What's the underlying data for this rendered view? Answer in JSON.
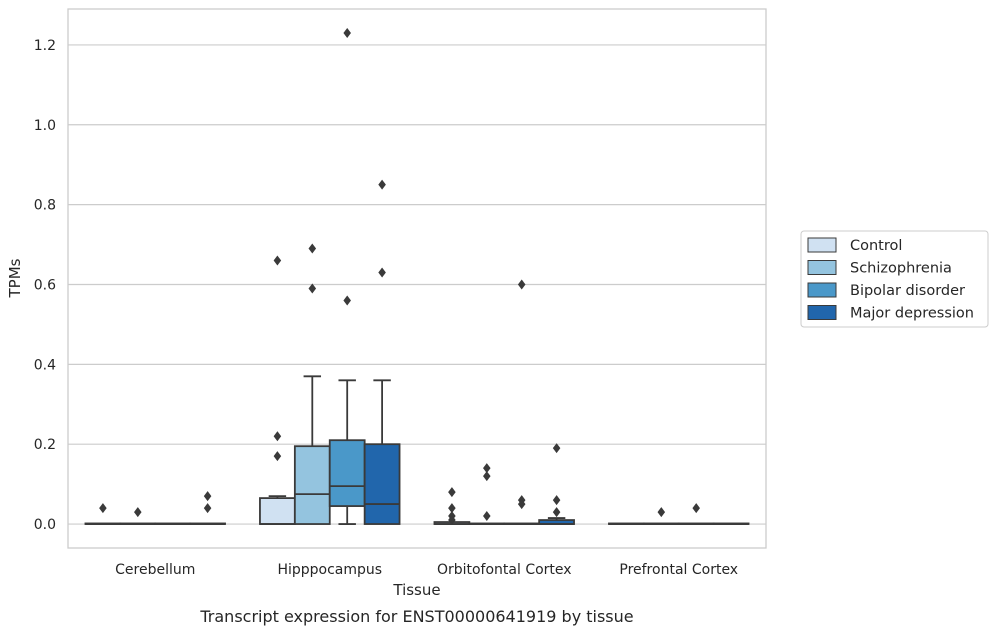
{
  "chart_data": {
    "type": "box",
    "title": "",
    "caption": "Transcript expression for ENST00000641919 by tissue",
    "xlabel": "Tissue",
    "ylabel": "TPMs",
    "ylim": [
      -0.06,
      1.29
    ],
    "yticks": [
      0.0,
      0.2,
      0.4,
      0.6,
      0.8,
      1.0,
      1.2
    ],
    "ytick_labels": [
      "0.0",
      "0.2",
      "0.4",
      "0.6",
      "0.8",
      "1.0",
      "1.2"
    ],
    "categories": [
      "Cerebellum",
      "Hipppocampus",
      "Orbitofontal Cortex",
      "Prefrontal Cortex"
    ],
    "grid": true,
    "legend": {
      "placement": "right"
    },
    "series": [
      {
        "name": "Control",
        "color": "#d0e1f2",
        "boxes": [
          {
            "q1": 0.0,
            "median": 0.0,
            "q3": 0.0,
            "whislo": 0.0,
            "whishi": 0.0,
            "fliers": [
              0.04
            ]
          },
          {
            "q1": 0.0,
            "median": 0.0,
            "q3": 0.065,
            "whislo": 0.0,
            "whishi": 0.07,
            "fliers": [
              0.22,
              0.17,
              0.66
            ]
          },
          {
            "q1": 0.0,
            "median": 0.0,
            "q3": 0.005,
            "whislo": 0.0,
            "whishi": 0.005,
            "fliers": [
              0.08,
              0.04,
              0.02,
              0.01
            ]
          },
          {
            "q1": 0.0,
            "median": 0.0,
            "q3": 0.0,
            "whislo": 0.0,
            "whishi": 0.0,
            "fliers": []
          }
        ]
      },
      {
        "name": "Schizophrenia",
        "color": "#94c4df",
        "boxes": [
          {
            "q1": 0.0,
            "median": 0.0,
            "q3": 0.0,
            "whislo": 0.0,
            "whishi": 0.0,
            "fliers": [
              0.03
            ]
          },
          {
            "q1": 0.0,
            "median": 0.075,
            "q3": 0.195,
            "whislo": 0.0,
            "whishi": 0.37,
            "fliers": [
              0.69,
              0.59
            ]
          },
          {
            "q1": 0.0,
            "median": 0.0,
            "q3": 0.0,
            "whislo": 0.0,
            "whishi": 0.0,
            "fliers": [
              0.14,
              0.12,
              0.02
            ]
          },
          {
            "q1": 0.0,
            "median": 0.0,
            "q3": 0.0,
            "whislo": 0.0,
            "whishi": 0.0,
            "fliers": [
              0.03
            ]
          }
        ]
      },
      {
        "name": "Bipolar disorder",
        "color": "#4a98c9",
        "boxes": [
          {
            "q1": 0.0,
            "median": 0.0,
            "q3": 0.0,
            "whislo": 0.0,
            "whishi": 0.0,
            "fliers": []
          },
          {
            "q1": 0.045,
            "median": 0.095,
            "q3": 0.21,
            "whislo": 0.0,
            "whishi": 0.36,
            "fliers": [
              1.23,
              0.56
            ]
          },
          {
            "q1": 0.0,
            "median": 0.0,
            "q3": 0.0,
            "whislo": 0.0,
            "whishi": 0.0,
            "fliers": [
              0.6,
              0.06,
              0.05
            ]
          },
          {
            "q1": 0.0,
            "median": 0.0,
            "q3": 0.0,
            "whislo": 0.0,
            "whishi": 0.0,
            "fliers": [
              0.04
            ]
          }
        ]
      },
      {
        "name": "Major depression",
        "color": "#2166ac",
        "boxes": [
          {
            "q1": 0.0,
            "median": 0.0,
            "q3": 0.0,
            "whislo": 0.0,
            "whishi": 0.0,
            "fliers": [
              0.07,
              0.04
            ]
          },
          {
            "q1": 0.0,
            "median": 0.05,
            "q3": 0.2,
            "whislo": 0.0,
            "whishi": 0.36,
            "fliers": [
              0.85,
              0.63
            ]
          },
          {
            "q1": 0.0,
            "median": 0.0,
            "q3": 0.01,
            "whislo": 0.0,
            "whishi": 0.015,
            "fliers": [
              0.19,
              0.06,
              0.03
            ]
          },
          {
            "q1": 0.0,
            "median": 0.0,
            "q3": 0.0,
            "whislo": 0.0,
            "whishi": 0.0,
            "fliers": []
          }
        ]
      }
    ]
  }
}
